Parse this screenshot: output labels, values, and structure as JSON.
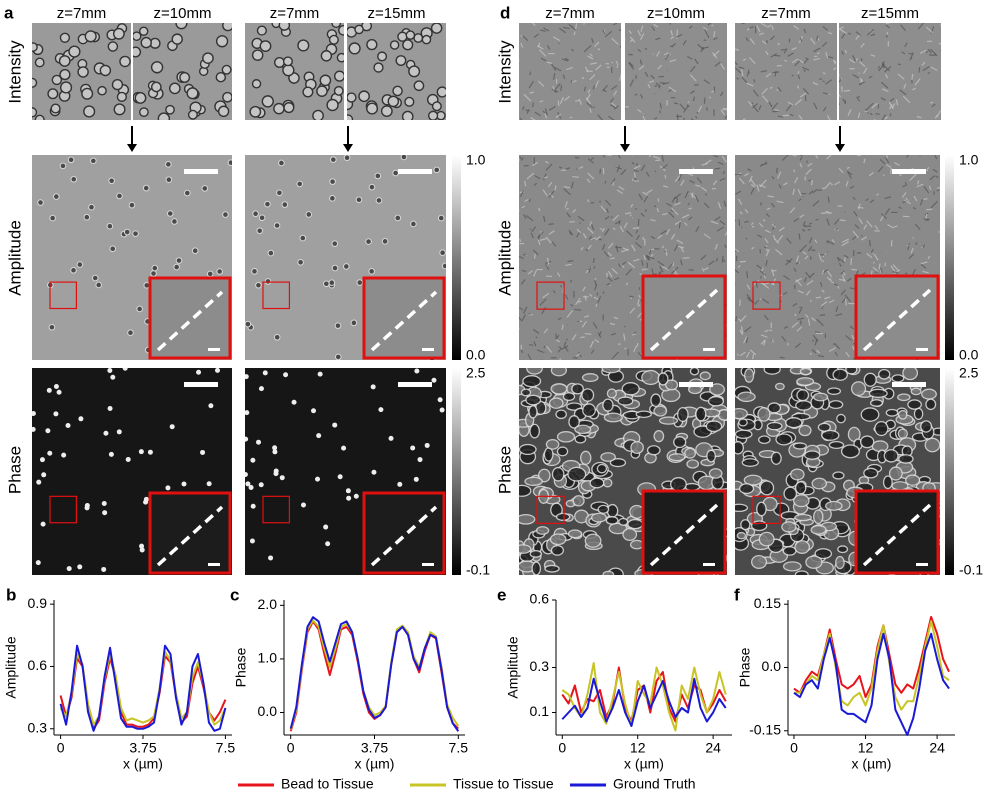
{
  "figure": {
    "image_groups": [
      {
        "label": "a",
        "columns": [
          "z=7mm",
          "z=10mm",
          "z=7mm",
          "z=15mm"
        ]
      },
      {
        "label": "d",
        "columns": [
          "z=7mm",
          "z=10mm",
          "z=7mm",
          "z=15mm"
        ]
      }
    ],
    "row_labels": [
      "Intensity",
      "Amplitude",
      "Phase"
    ],
    "colorbars": [
      {
        "max": "1.0",
        "min": "0.0"
      },
      {
        "max": "2.5",
        "min": "-0.1"
      }
    ]
  },
  "legend": [
    {
      "name": "Bead to Tissue",
      "color": "#e8141b"
    },
    {
      "name": "Tissue to Tissue",
      "color": "#c8c424"
    },
    {
      "name": "Ground Truth",
      "color": "#1a1ad6"
    }
  ],
  "chart_data": [
    {
      "type": "line",
      "label": "b",
      "xlabel": "x (µm)",
      "ylabel": "Amplitude",
      "xlim": [
        -0.3,
        7.8
      ],
      "xticks": [
        0,
        3.75,
        7.5
      ],
      "ylim": [
        0.27,
        0.92
      ],
      "yticks": [
        0.3,
        0.6,
        0.9
      ],
      "x": [
        0,
        0.25,
        0.5,
        0.75,
        1,
        1.25,
        1.5,
        1.75,
        2,
        2.25,
        2.5,
        2.75,
        3,
        3.25,
        3.5,
        3.75,
        4,
        4.25,
        4.5,
        4.75,
        5,
        5.25,
        5.5,
        5.75,
        6,
        6.25,
        6.5,
        6.75,
        7,
        7.25,
        7.5
      ],
      "series": [
        {
          "values": [
            0.46,
            0.36,
            0.45,
            0.64,
            0.6,
            0.4,
            0.3,
            0.34,
            0.52,
            0.64,
            0.55,
            0.38,
            0.32,
            0.32,
            0.31,
            0.31,
            0.32,
            0.35,
            0.47,
            0.65,
            0.62,
            0.46,
            0.33,
            0.36,
            0.52,
            0.6,
            0.5,
            0.38,
            0.34,
            0.38,
            0.44
          ]
        },
        {
          "values": [
            0.4,
            0.36,
            0.47,
            0.66,
            0.61,
            0.42,
            0.32,
            0.36,
            0.54,
            0.66,
            0.56,
            0.4,
            0.34,
            0.35,
            0.34,
            0.33,
            0.34,
            0.36,
            0.49,
            0.67,
            0.63,
            0.47,
            0.35,
            0.38,
            0.55,
            0.62,
            0.52,
            0.38,
            0.32,
            0.34,
            0.4
          ]
        },
        {
          "values": [
            0.42,
            0.32,
            0.48,
            0.7,
            0.6,
            0.38,
            0.29,
            0.36,
            0.55,
            0.69,
            0.52,
            0.35,
            0.31,
            0.31,
            0.3,
            0.3,
            0.31,
            0.33,
            0.48,
            0.7,
            0.66,
            0.45,
            0.32,
            0.38,
            0.6,
            0.66,
            0.52,
            0.33,
            0.29,
            0.3,
            0.4
          ]
        }
      ]
    },
    {
      "type": "line",
      "label": "c",
      "xlabel": "x (µm)",
      "ylabel": "Phase",
      "xlim": [
        -0.3,
        7.8
      ],
      "xticks": [
        0,
        3.75,
        7.5
      ],
      "ylim": [
        -0.42,
        2.1
      ],
      "yticks": [
        {
          "value": 0,
          "label": "0.0"
        },
        {
          "value": 1,
          "label": "1.0"
        },
        {
          "value": 2,
          "label": "2.0"
        }
      ],
      "x": [
        0,
        0.25,
        0.5,
        0.75,
        1,
        1.25,
        1.5,
        1.75,
        2,
        2.25,
        2.5,
        2.75,
        3,
        3.25,
        3.5,
        3.75,
        4,
        4.25,
        4.5,
        4.75,
        5,
        5.25,
        5.5,
        5.75,
        6,
        6.25,
        6.5,
        6.75,
        7,
        7.25,
        7.5
      ],
      "series": [
        {
          "values": [
            -0.35,
            0,
            0.8,
            1.5,
            1.7,
            1.55,
            1.1,
            0.7,
            1.1,
            1.55,
            1.6,
            1.45,
            0.95,
            0.35,
            0,
            -0.12,
            -0.05,
            0.1,
            0.9,
            1.5,
            1.6,
            1.45,
            1,
            0.75,
            1.15,
            1.45,
            1.38,
            0.75,
            0.1,
            -0.2,
            -0.3
          ]
        },
        {
          "values": [
            -0.32,
            0.05,
            0.85,
            1.55,
            1.72,
            1.6,
            1.2,
            0.85,
            1.2,
            1.6,
            1.65,
            1.5,
            1,
            0.4,
            0.1,
            -0.05,
            0,
            0.12,
            0.95,
            1.55,
            1.62,
            1.5,
            1.05,
            0.85,
            1.2,
            1.5,
            1.42,
            0.85,
            0.15,
            -0.1,
            -0.25
          ]
        },
        {
          "values": [
            -0.3,
            0.1,
            0.9,
            1.6,
            1.78,
            1.7,
            1.3,
            0.95,
            1.3,
            1.65,
            1.7,
            1.5,
            1,
            0.4,
            0.05,
            -0.1,
            -0.05,
            0.1,
            0.9,
            1.5,
            1.6,
            1.45,
            1,
            0.8,
            1.2,
            1.45,
            1.4,
            0.8,
            0.1,
            -0.2,
            -0.35
          ]
        }
      ]
    },
    {
      "type": "line",
      "label": "e",
      "xlabel": "x (µm)",
      "ylabel": "Amplitude",
      "xlim": [
        -1,
        27
      ],
      "xticks": [
        0,
        12,
        24
      ],
      "ylim": [
        0,
        0.6
      ],
      "yticks": [
        0.1,
        0.3,
        0.6
      ],
      "x": [
        0,
        1,
        2,
        3,
        4,
        5,
        6,
        7,
        8,
        9,
        10,
        11,
        12,
        13,
        14,
        15,
        16,
        17,
        18,
        19,
        20,
        21,
        22,
        23,
        24,
        25,
        26
      ],
      "series": [
        {
          "values": [
            0.18,
            0.14,
            0.22,
            0.1,
            0.16,
            0.15,
            0.2,
            0.08,
            0.14,
            0.3,
            0.12,
            0.06,
            0.2,
            0.22,
            0.1,
            0.24,
            0.28,
            0.12,
            0.06,
            0.18,
            0.12,
            0.22,
            0.2,
            0.1,
            0.14,
            0.2,
            0.15
          ]
        },
        {
          "values": [
            0.2,
            0.18,
            0.12,
            0.08,
            0.18,
            0.32,
            0.1,
            0.05,
            0.16,
            0.28,
            0.14,
            0.04,
            0.24,
            0.18,
            0.14,
            0.3,
            0.22,
            0.1,
            0.02,
            0.22,
            0.16,
            0.3,
            0.18,
            0.1,
            0.16,
            0.28,
            0.18
          ]
        },
        {
          "values": [
            0.07,
            0.1,
            0.13,
            0.08,
            0.12,
            0.25,
            0.15,
            0.06,
            0.12,
            0.2,
            0.1,
            0.04,
            0.15,
            0.22,
            0.12,
            0.18,
            0.24,
            0.15,
            0.08,
            0.12,
            0.1,
            0.25,
            0.12,
            0.06,
            0.1,
            0.16,
            0.12
          ]
        }
      ]
    },
    {
      "type": "line",
      "label": "f",
      "xlabel": "x (µm)",
      "ylabel": "Phase",
      "xlim": [
        -1,
        27
      ],
      "xticks": [
        0,
        12,
        24
      ],
      "ylim": [
        -0.16,
        0.16
      ],
      "yticks": [
        -0.15,
        {
          "value": 0,
          "label": "0.0"
        },
        0.15
      ],
      "x": [
        0,
        1,
        2,
        3,
        4,
        5,
        6,
        7,
        8,
        9,
        10,
        11,
        12,
        13,
        14,
        15,
        16,
        17,
        18,
        19,
        20,
        21,
        22,
        23,
        24,
        25,
        26
      ],
      "series": [
        {
          "values": [
            -0.05,
            -0.06,
            -0.03,
            -0.01,
            -0.02,
            0.03,
            0.09,
            0.02,
            -0.04,
            -0.05,
            -0.04,
            -0.02,
            -0.07,
            -0.04,
            0.05,
            0.1,
            0.03,
            -0.04,
            -0.06,
            -0.04,
            -0.05,
            0,
            0.06,
            0.12,
            0.08,
            0.02,
            -0.01
          ]
        },
        {
          "values": [
            -0.06,
            -0.06,
            -0.04,
            -0.02,
            -0.03,
            0.03,
            0.08,
            0,
            -0.08,
            -0.09,
            -0.07,
            -0.06,
            -0.09,
            -0.05,
            0.04,
            0.1,
            0.01,
            -0.07,
            -0.1,
            -0.08,
            -0.08,
            -0.02,
            0.05,
            0.11,
            0.05,
            -0.02,
            -0.03
          ]
        },
        {
          "values": [
            -0.06,
            -0.07,
            -0.04,
            -0.03,
            -0.05,
            0.02,
            0.07,
            0.01,
            -0.1,
            -0.11,
            -0.11,
            -0.12,
            -0.13,
            -0.09,
            0.02,
            0.08,
            0.02,
            -0.1,
            -0.13,
            -0.16,
            -0.12,
            -0.05,
            0.04,
            0.08,
            0.02,
            -0.03,
            -0.05
          ]
        }
      ]
    }
  ]
}
